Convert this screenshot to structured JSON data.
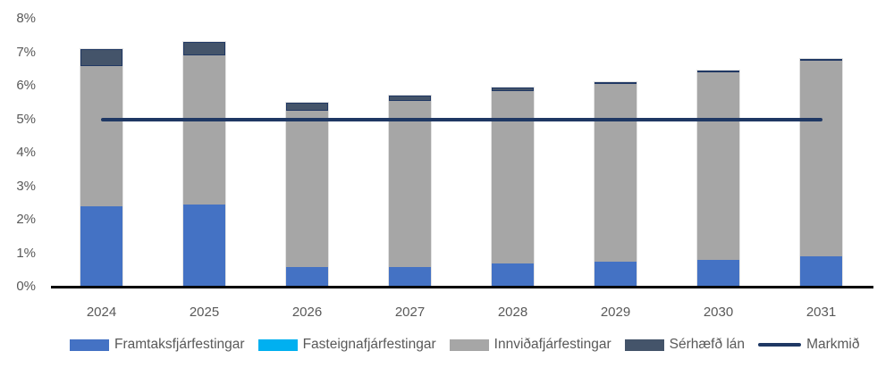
{
  "chart_data": {
    "type": "bar",
    "stacked": true,
    "title": "",
    "categories": [
      "2024",
      "2025",
      "2026",
      "2027",
      "2028",
      "2029",
      "2030",
      "2031"
    ],
    "series": [
      {
        "name": "Framtaksfjárfestingar",
        "color": "#4472C4",
        "values": [
          2.4,
          2.45,
          0.6,
          0.6,
          0.7,
          0.75,
          0.8,
          0.9
        ]
      },
      {
        "name": "Fasteignafjárfestingar",
        "color": "#00B0F0",
        "values": [
          0,
          0,
          0,
          0,
          0,
          0,
          0,
          0
        ]
      },
      {
        "name": "Innviðafjárfestingar",
        "color": "#A6A6A6",
        "values": [
          4.2,
          4.45,
          4.65,
          4.95,
          5.15,
          5.3,
          5.6,
          5.85
        ]
      },
      {
        "name": "Sérhæfð lán",
        "color": "#44546A",
        "border_color": "#203864",
        "values": [
          0.5,
          0.4,
          0.25,
          0.15,
          0.1,
          0.05,
          0.05,
          0.05
        ]
      }
    ],
    "stack_totals": [
      7.1,
      7.3,
      5.5,
      5.7,
      5.95,
      6.1,
      6.45,
      6.8
    ],
    "target_line": {
      "name": "Markmið",
      "value": 5,
      "color": "#1F3864"
    },
    "xlabel": "",
    "ylabel": "",
    "ylim": [
      0,
      8
    ],
    "yticks": [
      "0%",
      "1%",
      "2%",
      "3%",
      "4%",
      "5%",
      "6%",
      "7%",
      "8%"
    ],
    "ytick_format": "percent",
    "grid": false,
    "legend_position": "bottom",
    "axis_color": "#000000",
    "text_color": "#595959",
    "background_color": "#FFFFFF"
  }
}
